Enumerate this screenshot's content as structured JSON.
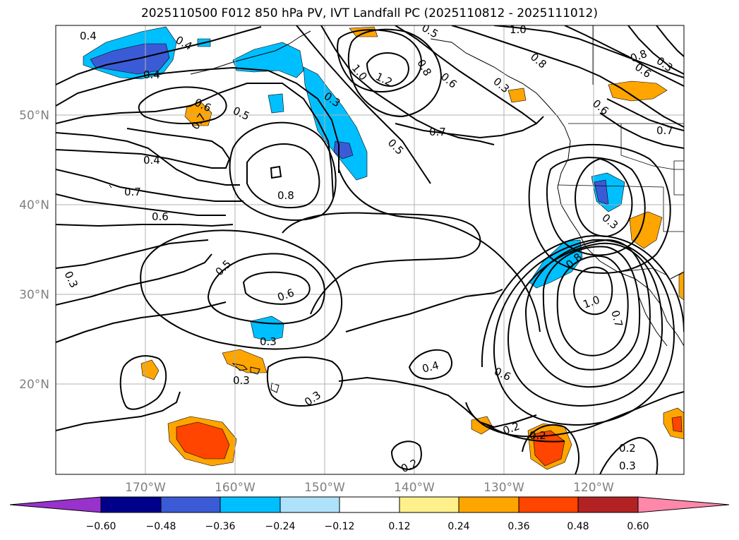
{
  "title": "2025110500 F012 850 hPa PV, IVT Landfall PC (2025110812 - 2025111012)",
  "axes": {
    "x_ticks": [
      "170°W",
      "160°W",
      "150°W",
      "140°W",
      "130°W",
      "120°W"
    ],
    "y_ticks": [
      "50°N",
      "40°N",
      "30°N",
      "20°N"
    ]
  },
  "colorbar": {
    "ticks": [
      "−0.60",
      "−0.48",
      "−0.36",
      "−0.24",
      "−0.12",
      "0.12",
      "0.24",
      "0.36",
      "0.48",
      "0.60"
    ],
    "colors": [
      "#9932cc",
      "#00008b",
      "#3b5bd6",
      "#00bfff",
      "#aee2fa",
      "#ffffff",
      "#fff08c",
      "#ffa500",
      "#ff4500",
      "#b22222",
      "#ff88aa"
    ]
  },
  "contour_labels": [
    "0.4",
    "0.4",
    "0.4",
    "0.6",
    "0.5",
    "0.7",
    "0.4",
    "0.7",
    "0.6",
    "0.8",
    "0.3",
    "0.5",
    "0.6",
    "0.3",
    "0.3",
    "0.3",
    "0.3",
    "0.4",
    "0.6",
    "0.2",
    "0.2",
    "0.2",
    "0.2",
    "0.3",
    "1.0",
    "0.7",
    "0.8",
    "0.3",
    "1.0",
    "1.2",
    "0.8",
    "0.6",
    "0.7",
    "0.5",
    "0.3",
    "0.8",
    "0.6",
    "0.7",
    "1.0",
    "0.8",
    "0.3",
    "0.6",
    "0.5"
  ]
}
